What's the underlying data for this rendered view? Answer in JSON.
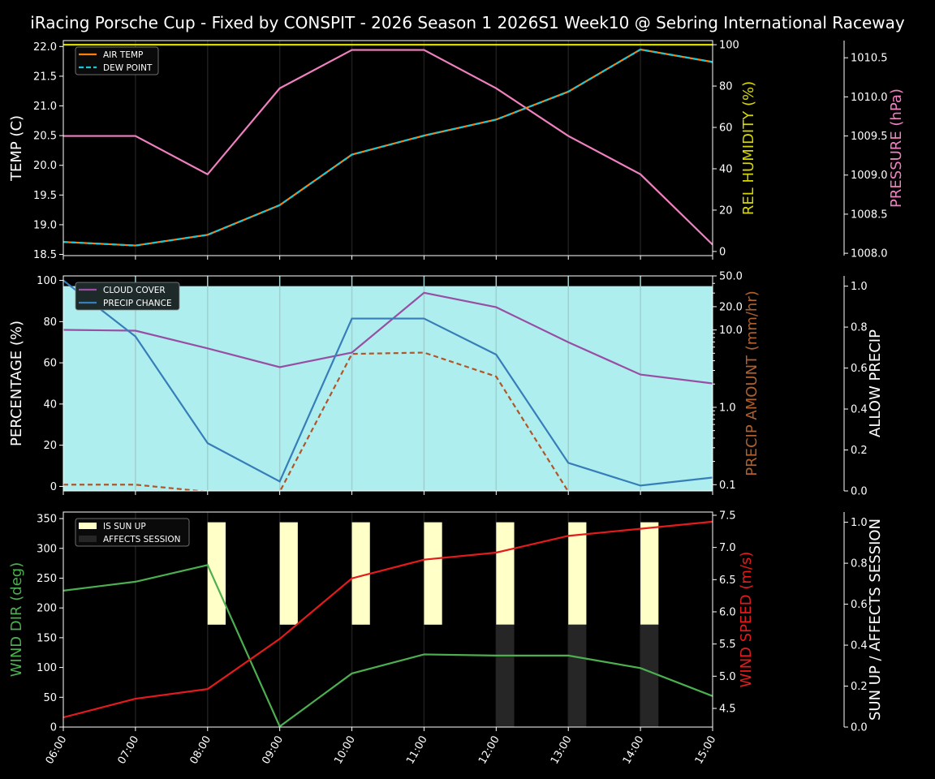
{
  "title": "iRacing Porsche Cup - Fixed by CONSPIT - 2026 Season 1 2026S1 Week10 @ Sebring International Raceway",
  "x": [
    "06:00",
    "07:00",
    "08:00",
    "09:00",
    "10:00",
    "11:00",
    "12:00",
    "13:00",
    "14:00",
    "15:00"
  ],
  "chart_data": [
    {
      "type": "line",
      "axes": {
        "left": {
          "label": "TEMP (C)",
          "color": "#ffffff",
          "scale": "linear",
          "lim": [
            18.48,
            22.1
          ],
          "ticks": [
            "18.5",
            "19.0",
            "19.5",
            "20.0",
            "20.5",
            "21.0",
            "21.5",
            "22.0"
          ]
        },
        "right": {
          "label": "REL HUMIDITY (%)",
          "color": "#d7d700",
          "scale": "linear",
          "lim": [
            -2,
            102
          ],
          "ticks": [
            "0",
            "20",
            "40",
            "60",
            "80",
            "100"
          ]
        },
        "right2": {
          "label": "PRESSURE (hPa)",
          "color": "#f080c0",
          "scale": "linear",
          "lim": [
            1007.97,
            1010.72
          ],
          "ticks": [
            "1008.0",
            "1008.5",
            "1009.0",
            "1009.5",
            "1010.0",
            "1010.5"
          ]
        }
      },
      "legend": {
        "position": "top-left",
        "items": [
          "AIR TEMP",
          "DEW POINT"
        ]
      },
      "series": [
        {
          "name": "REL HUMIDITY",
          "axis": "right",
          "color": "#d7d700",
          "values": [
            100,
            100,
            100,
            100,
            100,
            100,
            100,
            100,
            100,
            100
          ]
        },
        {
          "name": "PRESSURE",
          "axis": "right2",
          "color": "#f080c0",
          "values": [
            1009.5,
            1009.5,
            1009.01,
            1010.11,
            1010.6,
            1010.6,
            1010.11,
            1009.5,
            1009.01,
            1008.11
          ]
        },
        {
          "name": "AIR TEMP",
          "axis": "left",
          "color": "#ff7f0e",
          "legend": 0,
          "values": [
            18.71,
            18.65,
            18.83,
            19.33,
            20.18,
            20.5,
            20.77,
            21.24,
            21.95,
            21.74
          ]
        },
        {
          "name": "DEW POINT",
          "axis": "left",
          "color": "#17c9d4",
          "dash": true,
          "legend": 1,
          "values": [
            18.71,
            18.65,
            18.83,
            19.33,
            20.18,
            20.5,
            20.77,
            21.24,
            21.95,
            21.74
          ]
        }
      ]
    },
    {
      "type": "line",
      "axes": {
        "left": {
          "label": "PERCENTAGE (%)",
          "color": "#ffffff",
          "scale": "linear",
          "lim": [
            -2.2,
            102.2
          ],
          "ticks": [
            "0",
            "20",
            "40",
            "60",
            "80",
            "100"
          ]
        },
        "right": {
          "label": "PRECIP AMOUNT (mm/hr)",
          "color": "#b0602c",
          "scale": "log",
          "lim": [
            0.083,
            50
          ],
          "ticks": [
            "0.1",
            "1.0",
            "10.0",
            "20.0",
            "50.0"
          ]
        },
        "right2": {
          "label": "ALLOW PRECIP",
          "color": "#ffffff",
          "scale": "linear",
          "lim": [
            0,
            1.05
          ],
          "ticks": [
            "0.0",
            "0.2",
            "0.4",
            "0.6",
            "0.8",
            "1.0"
          ]
        }
      },
      "legend": {
        "position": "top-left",
        "items": [
          "CLOUD COVER",
          "PRECIP CHANCE"
        ]
      },
      "series": [
        {
          "name": "ALLOW PRECIP",
          "axis": "right2",
          "kind": "fill",
          "color": "#afeeee",
          "values": [
            1,
            1,
            1,
            1,
            1,
            1,
            1,
            1,
            1,
            1
          ]
        },
        {
          "name": "PRECIP AMOUNT",
          "axis": "right",
          "color": "#b0562a",
          "dash": true,
          "values": [
            0.1,
            0.1,
            0,
            0,
            4.9,
            5.1,
            2.5,
            0,
            0,
            0
          ]
        },
        {
          "name": "CLOUD COVER",
          "axis": "left",
          "color": "#984ea3",
          "legend": 0,
          "values": [
            76,
            75.6,
            67,
            57.9,
            65,
            94,
            87,
            70,
            54.3,
            50
          ]
        },
        {
          "name": "PRECIP CHANCE",
          "axis": "left",
          "color": "#377eb8",
          "legend": 1,
          "values": [
            100,
            72.8,
            21,
            2.4,
            81.5,
            81.5,
            64,
            11.4,
            0.4,
            4.3
          ]
        }
      ]
    },
    {
      "type": "line",
      "axes": {
        "left": {
          "label": "WIND DIR (deg)",
          "color": "#4caf50",
          "scale": "linear",
          "lim": [
            0,
            361
          ],
          "ticks": [
            "0",
            "50",
            "100",
            "150",
            "200",
            "250",
            "300",
            "350"
          ]
        },
        "right": {
          "label": "WIND SPEED (m/s)",
          "color": "#e41a1c",
          "scale": "linear",
          "lim": [
            4.21,
            7.55
          ],
          "ticks": [
            "4.5",
            "5.0",
            "5.5",
            "6.0",
            "6.5",
            "7.0",
            "7.5"
          ]
        },
        "right2": {
          "label": "SUN UP / AFFECTS SESSION",
          "color": "#ffffff",
          "scale": "linear",
          "lim": [
            0,
            1.05
          ],
          "ticks": [
            "0.0",
            "0.2",
            "0.4",
            "0.6",
            "0.8",
            "1.0"
          ]
        }
      },
      "legend": {
        "position": "top-left",
        "items": [
          "IS SUN UP",
          "AFFECTS SESSION"
        ]
      },
      "series": [
        {
          "name": "IS SUN UP",
          "axis": "right2",
          "kind": "bar-top",
          "color": "#ffffc8",
          "legend": 0,
          "values": [
            0,
            0,
            1,
            1,
            1,
            1,
            1,
            1,
            1,
            0
          ]
        },
        {
          "name": "AFFECTS SESSION",
          "axis": "right2",
          "kind": "bar-bottom",
          "color": "#262626",
          "legend": 1,
          "values": [
            0,
            0,
            0,
            0,
            0,
            0,
            1,
            1,
            1,
            0
          ]
        },
        {
          "name": "WIND DIR",
          "axis": "left",
          "color": "#4caf50",
          "values": [
            229,
            244,
            272,
            1,
            90,
            122,
            120,
            120,
            99,
            52
          ]
        },
        {
          "name": "WIND SPEED",
          "axis": "right",
          "color": "#e41a1c",
          "values": [
            4.36,
            4.65,
            4.8,
            5.58,
            6.52,
            6.81,
            6.92,
            7.18,
            7.29,
            7.4
          ]
        }
      ]
    }
  ]
}
